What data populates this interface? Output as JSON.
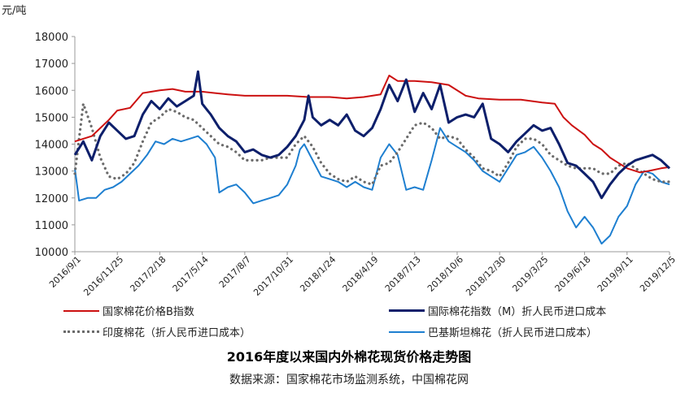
{
  "unit_label": "元/吨",
  "chart_data": {
    "type": "line",
    "title": "2016年度以来国内外棉花现货价格走势图",
    "source": "数据来源：国家棉花市场监测系统，中国棉花网",
    "ylabel": "元/吨",
    "ylim": [
      10000,
      18000
    ],
    "yticks": [
      10000,
      11000,
      12000,
      13000,
      14000,
      15000,
      16000,
      17000,
      18000
    ],
    "x_ticks": [
      "2016/9/1",
      "2016/11/25",
      "2017/2/18",
      "2017/5/14",
      "2017/8/7",
      "2017/10/31",
      "2018/1/24",
      "2018/4/19",
      "2018/7/13",
      "2018/10/6",
      "2018/12/30",
      "2019/3/25",
      "2019/6/18",
      "2019/9/11",
      "2019/12/5"
    ],
    "legend_position": "bottom",
    "grid": false,
    "series": [
      {
        "name": "国家棉花价格B指数",
        "color": "#cc1111",
        "style": "solid",
        "points": [
          [
            0,
            14100
          ],
          [
            0.4,
            14300
          ],
          [
            0.8,
            14900
          ],
          [
            1.0,
            15250
          ],
          [
            1.3,
            15350
          ],
          [
            1.6,
            15900
          ],
          [
            2.0,
            16000
          ],
          [
            2.3,
            16050
          ],
          [
            2.6,
            15950
          ],
          [
            3.0,
            15950
          ],
          [
            3.3,
            15900
          ],
          [
            3.6,
            15850
          ],
          [
            4.0,
            15800
          ],
          [
            4.5,
            15800
          ],
          [
            5.0,
            15800
          ],
          [
            5.5,
            15750
          ],
          [
            6.0,
            15750
          ],
          [
            6.4,
            15700
          ],
          [
            6.8,
            15750
          ],
          [
            7.2,
            15850
          ],
          [
            7.4,
            16550
          ],
          [
            7.6,
            16350
          ],
          [
            8.0,
            16350
          ],
          [
            8.4,
            16300
          ],
          [
            8.8,
            16200
          ],
          [
            9.2,
            15800
          ],
          [
            9.5,
            15700
          ],
          [
            10.0,
            15650
          ],
          [
            10.5,
            15650
          ],
          [
            11.0,
            15550
          ],
          [
            11.3,
            15500
          ],
          [
            11.5,
            15000
          ],
          [
            11.7,
            14700
          ],
          [
            12.0,
            14350
          ],
          [
            12.2,
            14000
          ],
          [
            12.4,
            13800
          ],
          [
            12.6,
            13500
          ],
          [
            12.8,
            13300
          ],
          [
            13.0,
            13100
          ],
          [
            13.3,
            12950
          ],
          [
            13.5,
            13000
          ],
          [
            13.8,
            13100
          ],
          [
            14.0,
            13150
          ]
        ]
      },
      {
        "name": "国际棉花指数（M）折人民币进口成本",
        "color": "#0d1f6b",
        "style": "solid",
        "points": [
          [
            0,
            13600
          ],
          [
            0.2,
            14100
          ],
          [
            0.4,
            13400
          ],
          [
            0.6,
            14300
          ],
          [
            0.8,
            14800
          ],
          [
            1.0,
            14500
          ],
          [
            1.2,
            14200
          ],
          [
            1.4,
            14300
          ],
          [
            1.6,
            15100
          ],
          [
            1.8,
            15600
          ],
          [
            2.0,
            15300
          ],
          [
            2.2,
            15700
          ],
          [
            2.4,
            15400
          ],
          [
            2.6,
            15600
          ],
          [
            2.8,
            15800
          ],
          [
            2.9,
            16700
          ],
          [
            3.0,
            15500
          ],
          [
            3.2,
            15100
          ],
          [
            3.4,
            14600
          ],
          [
            3.6,
            14300
          ],
          [
            3.8,
            14100
          ],
          [
            4.0,
            13700
          ],
          [
            4.2,
            13800
          ],
          [
            4.4,
            13600
          ],
          [
            4.6,
            13500
          ],
          [
            4.8,
            13600
          ],
          [
            5.0,
            13900
          ],
          [
            5.2,
            14300
          ],
          [
            5.4,
            14900
          ],
          [
            5.5,
            15800
          ],
          [
            5.6,
            15000
          ],
          [
            5.8,
            14700
          ],
          [
            6.0,
            14900
          ],
          [
            6.2,
            14700
          ],
          [
            6.4,
            15100
          ],
          [
            6.6,
            14500
          ],
          [
            6.8,
            14300
          ],
          [
            7.0,
            14600
          ],
          [
            7.2,
            15300
          ],
          [
            7.4,
            16200
          ],
          [
            7.6,
            15600
          ],
          [
            7.8,
            16400
          ],
          [
            8.0,
            15200
          ],
          [
            8.2,
            15900
          ],
          [
            8.4,
            15300
          ],
          [
            8.6,
            16200
          ],
          [
            8.8,
            14800
          ],
          [
            9.0,
            15000
          ],
          [
            9.2,
            15100
          ],
          [
            9.4,
            15000
          ],
          [
            9.6,
            15500
          ],
          [
            9.8,
            14200
          ],
          [
            10.0,
            14000
          ],
          [
            10.2,
            13700
          ],
          [
            10.4,
            14100
          ],
          [
            10.6,
            14400
          ],
          [
            10.8,
            14700
          ],
          [
            11.0,
            14500
          ],
          [
            11.2,
            14600
          ],
          [
            11.4,
            14000
          ],
          [
            11.6,
            13300
          ],
          [
            11.8,
            13200
          ],
          [
            12.0,
            12900
          ],
          [
            12.2,
            12600
          ],
          [
            12.4,
            12000
          ],
          [
            12.6,
            12500
          ],
          [
            12.8,
            12900
          ],
          [
            13.0,
            13200
          ],
          [
            13.2,
            13400
          ],
          [
            13.4,
            13500
          ],
          [
            13.6,
            13600
          ],
          [
            13.8,
            13400
          ],
          [
            14.0,
            13100
          ]
        ]
      },
      {
        "name": "印度棉花（折人民币进口成本）",
        "color": "#6b6b6b",
        "style": "dotted",
        "points": [
          [
            0,
            12900
          ],
          [
            0.2,
            15500
          ],
          [
            0.4,
            14600
          ],
          [
            0.6,
            13500
          ],
          [
            0.8,
            12800
          ],
          [
            1.0,
            12700
          ],
          [
            1.2,
            12900
          ],
          [
            1.4,
            13300
          ],
          [
            1.6,
            14100
          ],
          [
            1.8,
            14800
          ],
          [
            2.0,
            15000
          ],
          [
            2.2,
            15300
          ],
          [
            2.4,
            15200
          ],
          [
            2.6,
            15000
          ],
          [
            2.8,
            14900
          ],
          [
            3.0,
            14600
          ],
          [
            3.2,
            14300
          ],
          [
            3.4,
            14000
          ],
          [
            3.6,
            13900
          ],
          [
            3.8,
            13700
          ],
          [
            4.0,
            13400
          ],
          [
            4.2,
            13400
          ],
          [
            4.4,
            13400
          ],
          [
            4.6,
            13500
          ],
          [
            4.8,
            13500
          ],
          [
            5.0,
            13500
          ],
          [
            5.2,
            14000
          ],
          [
            5.4,
            14300
          ],
          [
            5.6,
            13900
          ],
          [
            5.8,
            13300
          ],
          [
            6.0,
            12900
          ],
          [
            6.2,
            12700
          ],
          [
            6.4,
            12600
          ],
          [
            6.6,
            12800
          ],
          [
            6.8,
            12600
          ],
          [
            7.0,
            12500
          ],
          [
            7.2,
            13200
          ],
          [
            7.4,
            13300
          ],
          [
            7.6,
            13700
          ],
          [
            7.8,
            14200
          ],
          [
            8.0,
            14700
          ],
          [
            8.2,
            14800
          ],
          [
            8.4,
            14600
          ],
          [
            8.6,
            14200
          ],
          [
            8.8,
            14300
          ],
          [
            9.0,
            14200
          ],
          [
            9.2,
            13800
          ],
          [
            9.4,
            13500
          ],
          [
            9.6,
            13100
          ],
          [
            9.8,
            13000
          ],
          [
            10.0,
            12800
          ],
          [
            10.2,
            13300
          ],
          [
            10.4,
            13900
          ],
          [
            10.6,
            14200
          ],
          [
            10.8,
            14200
          ],
          [
            11.0,
            14000
          ],
          [
            11.2,
            13600
          ],
          [
            11.4,
            13400
          ],
          [
            11.6,
            13200
          ],
          [
            11.8,
            13100
          ],
          [
            12.0,
            13100
          ],
          [
            12.2,
            13100
          ],
          [
            12.4,
            12900
          ],
          [
            12.6,
            12900
          ],
          [
            12.8,
            13200
          ],
          [
            13.0,
            13300
          ],
          [
            13.2,
            13100
          ],
          [
            13.4,
            12900
          ],
          [
            13.6,
            12700
          ],
          [
            13.8,
            12600
          ],
          [
            14.0,
            12600
          ]
        ]
      },
      {
        "name": "巴基斯坦棉花（折人民币进口成本）",
        "color": "#1e7fd0",
        "style": "solid",
        "points": [
          [
            0,
            13100
          ],
          [
            0.1,
            11900
          ],
          [
            0.3,
            12000
          ],
          [
            0.5,
            12000
          ],
          [
            0.7,
            12300
          ],
          [
            0.9,
            12400
          ],
          [
            1.1,
            12600
          ],
          [
            1.3,
            12900
          ],
          [
            1.5,
            13200
          ],
          [
            1.7,
            13600
          ],
          [
            1.9,
            14100
          ],
          [
            2.1,
            14000
          ],
          [
            2.3,
            14200
          ],
          [
            2.5,
            14100
          ],
          [
            2.7,
            14200
          ],
          [
            2.9,
            14300
          ],
          [
            3.1,
            14000
          ],
          [
            3.3,
            13500
          ],
          [
            3.4,
            12200
          ],
          [
            3.6,
            12400
          ],
          [
            3.8,
            12500
          ],
          [
            4.0,
            12200
          ],
          [
            4.2,
            11800
          ],
          [
            4.4,
            11900
          ],
          [
            4.6,
            12000
          ],
          [
            4.8,
            12100
          ],
          [
            5.0,
            12500
          ],
          [
            5.2,
            13200
          ],
          [
            5.3,
            13800
          ],
          [
            5.4,
            14000
          ],
          [
            5.6,
            13400
          ],
          [
            5.8,
            12800
          ],
          [
            6.0,
            12700
          ],
          [
            6.2,
            12600
          ],
          [
            6.4,
            12400
          ],
          [
            6.6,
            12600
          ],
          [
            6.8,
            12400
          ],
          [
            7.0,
            12300
          ],
          [
            7.2,
            13500
          ],
          [
            7.4,
            14000
          ],
          [
            7.6,
            13600
          ],
          [
            7.8,
            12300
          ],
          [
            8.0,
            12400
          ],
          [
            8.2,
            12300
          ],
          [
            8.4,
            13400
          ],
          [
            8.6,
            14600
          ],
          [
            8.8,
            14100
          ],
          [
            9.0,
            13900
          ],
          [
            9.2,
            13700
          ],
          [
            9.4,
            13400
          ],
          [
            9.6,
            13000
          ],
          [
            9.8,
            12800
          ],
          [
            10.0,
            12600
          ],
          [
            10.2,
            13100
          ],
          [
            10.4,
            13600
          ],
          [
            10.6,
            13700
          ],
          [
            10.8,
            13900
          ],
          [
            11.0,
            13500
          ],
          [
            11.2,
            13000
          ],
          [
            11.4,
            12400
          ],
          [
            11.6,
            11500
          ],
          [
            11.8,
            10900
          ],
          [
            12.0,
            11300
          ],
          [
            12.2,
            10900
          ],
          [
            12.4,
            10300
          ],
          [
            12.6,
            10600
          ],
          [
            12.8,
            11300
          ],
          [
            13.0,
            11700
          ],
          [
            13.2,
            12500
          ],
          [
            13.4,
            13000
          ],
          [
            13.6,
            12900
          ],
          [
            13.8,
            12600
          ],
          [
            14.0,
            12500
          ]
        ]
      }
    ]
  }
}
